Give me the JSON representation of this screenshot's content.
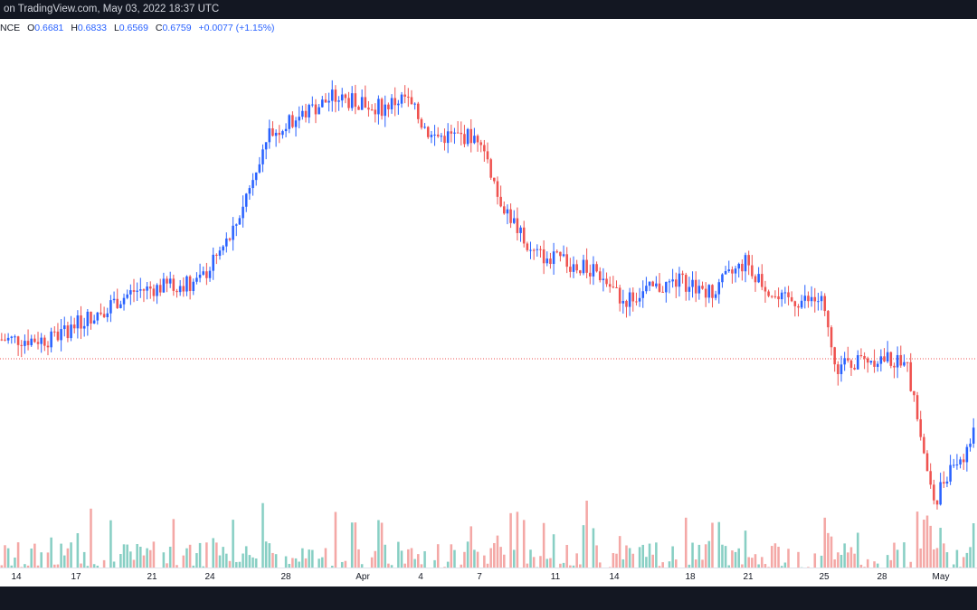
{
  "header": {
    "published": "on TradingView.com, May 03, 2022 18:37 UTC"
  },
  "legend": {
    "symbol_fragment": "NCE",
    "open_label": "O",
    "open": "0.6681",
    "high_label": "H",
    "high": "0.6833",
    "low_label": "L",
    "low": "0.6569",
    "close_label": "C",
    "close": "0.6759",
    "change": "+0.0077 (+1.15%)"
  },
  "colors": {
    "up": "#2962ff",
    "down": "#ef5350",
    "volume_up": "#88cfc4",
    "volume_down": "#f4a8a6",
    "price_line": "#ef5350"
  },
  "chart_data": {
    "type": "candlestick",
    "interval": "4h",
    "y_range": [
      0.5,
      1.0
    ],
    "price_line_value": 0.7,
    "x_tick_labels": [
      "14",
      "17",
      "21",
      "24",
      "28",
      "Apr",
      "4",
      "7",
      "11",
      "14",
      "18",
      "21",
      "25",
      "28",
      "May"
    ],
    "anchors": [
      [
        0,
        0.72
      ],
      [
        15,
        0.72
      ],
      [
        40,
        0.77
      ],
      [
        60,
        0.78
      ],
      [
        70,
        0.83
      ],
      [
        80,
        0.93
      ],
      [
        90,
        0.95
      ],
      [
        100,
        0.97
      ],
      [
        115,
        0.96
      ],
      [
        122,
        0.97
      ],
      [
        130,
        0.93
      ],
      [
        138,
        0.93
      ],
      [
        145,
        0.93
      ],
      [
        150,
        0.87
      ],
      [
        160,
        0.81
      ],
      [
        170,
        0.8
      ],
      [
        180,
        0.79
      ],
      [
        188,
        0.76
      ],
      [
        195,
        0.77
      ],
      [
        205,
        0.78
      ],
      [
        215,
        0.77
      ],
      [
        225,
        0.8
      ],
      [
        235,
        0.76
      ],
      [
        248,
        0.76
      ],
      [
        252,
        0.69
      ],
      [
        262,
        0.7
      ],
      [
        268,
        0.7
      ],
      [
        274,
        0.69
      ],
      [
        282,
        0.55
      ],
      [
        287,
        0.59
      ],
      [
        291,
        0.6
      ],
      [
        294,
        0.62
      ]
    ],
    "bar_count": 295,
    "note_values": "candle values in price units, volume in relative units"
  }
}
